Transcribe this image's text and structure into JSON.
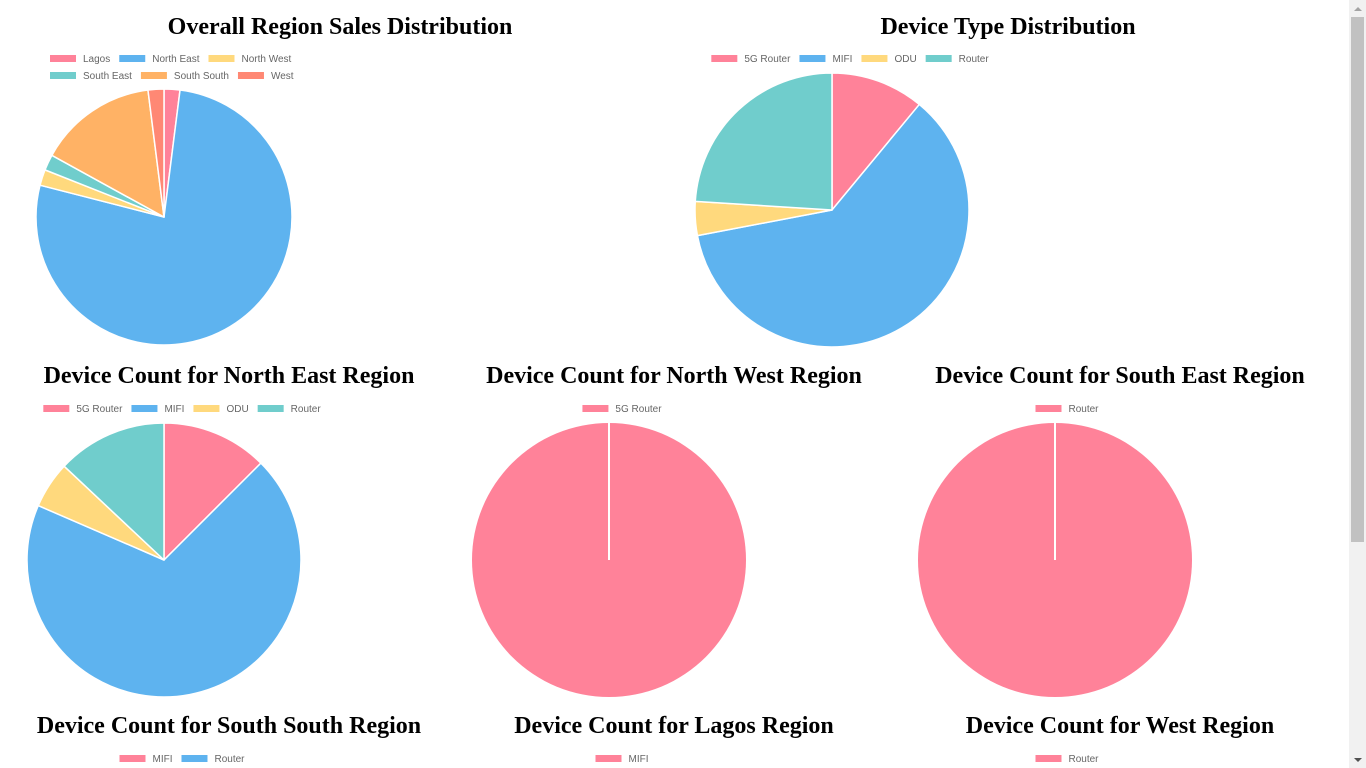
{
  "colors": {
    "palette": [
      "#ff8299",
      "#5eb3ef",
      "#ffd97d",
      "#70cdcc",
      "#ffb265",
      "#ff8874"
    ],
    "legend_text": "#666666"
  },
  "chart_data": [
    {
      "id": "overall",
      "type": "pie",
      "title": "Overall Region Sales Distribution",
      "categories": [
        "Lagos",
        "North East",
        "North West",
        "South East",
        "South South",
        "West"
      ],
      "values": [
        2,
        77,
        2,
        2,
        15,
        2
      ]
    },
    {
      "id": "device",
      "type": "pie",
      "title": "Device Type Distribution",
      "categories": [
        "5G Router",
        "MIFI",
        "ODU",
        "Router"
      ],
      "values": [
        11,
        61,
        4,
        24
      ]
    },
    {
      "id": "ne",
      "type": "pie",
      "title": "Device Count for North East Region",
      "categories": [
        "5G Router",
        "MIFI",
        "ODU",
        "Router"
      ],
      "values": [
        12.5,
        69,
        5.5,
        13
      ]
    },
    {
      "id": "nw",
      "type": "pie",
      "title": "Device Count for North West Region",
      "categories": [
        "5G Router"
      ],
      "values": [
        1
      ]
    },
    {
      "id": "se",
      "type": "pie",
      "title": "Device Count for South East Region",
      "categories": [
        "Router"
      ],
      "values": [
        1
      ]
    },
    {
      "id": "ss",
      "type": "pie",
      "title": "Device Count for South South Region",
      "categories": [
        "MIFI",
        "Router"
      ],
      "values": null
    },
    {
      "id": "lagos",
      "type": "pie",
      "title": "Device Count for Lagos Region",
      "categories": [
        "MIFI"
      ],
      "values": null
    },
    {
      "id": "west",
      "type": "pie",
      "title": "Device Count for West Region",
      "categories": [
        "Router"
      ],
      "values": null
    }
  ]
}
